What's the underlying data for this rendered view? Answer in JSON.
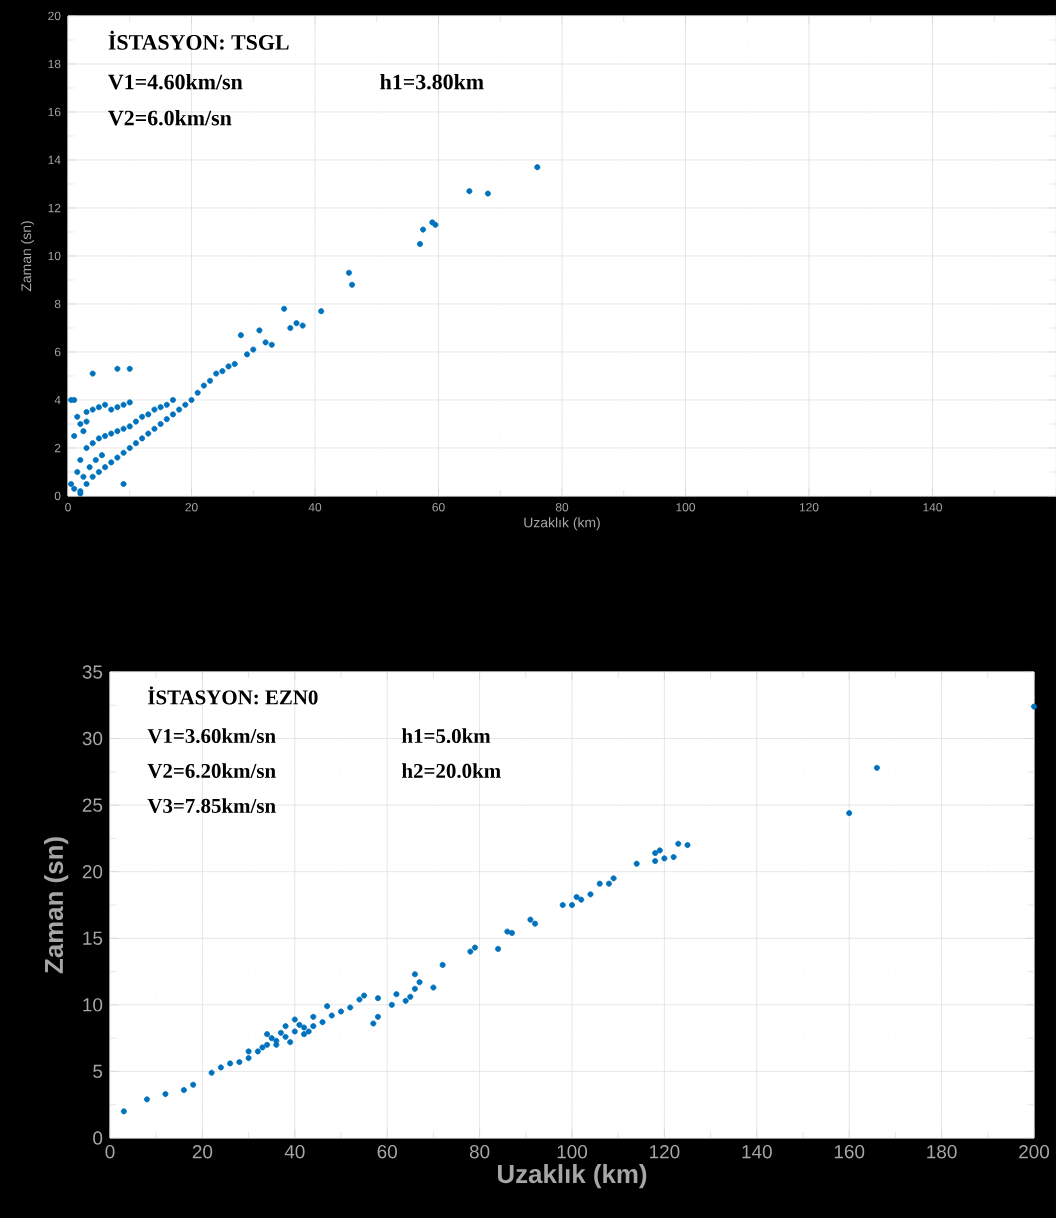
{
  "chart_data": [
    {
      "type": "scatter",
      "xlabel": "Uzaklık (km)",
      "ylabel": "Zaman (sn)",
      "annotations": [
        "İSTASYON: TSGL",
        "V1=4.60km/sn",
        "h1=3.80km",
        "V2=6.0km/sn"
      ],
      "xlim": [
        0,
        160
      ],
      "ylim": [
        0,
        20
      ],
      "xticks": [
        0,
        20,
        40,
        60,
        80,
        100,
        120,
        140,
        {
          "value": 160,
          "label": null
        }
      ],
      "yticks": [
        0,
        2,
        4,
        6,
        8,
        10,
        12,
        14,
        16,
        18,
        20
      ],
      "grid": true,
      "marker": "circle",
      "series": [
        {
          "color": "#0072bd",
          "x": [
            0.5,
            1,
            1,
            1.5,
            2,
            2,
            2,
            2.5,
            3,
            3,
            3,
            3.5,
            4,
            4,
            4,
            4.5,
            5,
            5,
            5,
            5.5,
            6,
            6,
            6,
            7,
            7,
            7,
            8,
            8,
            8,
            9,
            9,
            9,
            10,
            10,
            10,
            11,
            11,
            12,
            12,
            13,
            13,
            14,
            14,
            15,
            15,
            16,
            16,
            17,
            17,
            18,
            19,
            20,
            21,
            22,
            23,
            24,
            25,
            26,
            27,
            28,
            29,
            30,
            31,
            32,
            33,
            35,
            36,
            37,
            38,
            41,
            45.5,
            46,
            57,
            57.5,
            59,
            59.5,
            65,
            68,
            76,
            4,
            8,
            10,
            9,
            2,
            0.5,
            1,
            3,
            1.5,
            2.5
          ],
          "values": [
            0.5,
            0.3,
            2.5,
            1.0,
            0.2,
            1.5,
            3.0,
            0.8,
            0.5,
            2.0,
            3.5,
            1.2,
            0.8,
            2.2,
            3.6,
            1.5,
            1.0,
            2.4,
            3.7,
            1.7,
            1.2,
            2.5,
            3.8,
            1.4,
            2.6,
            3.6,
            1.6,
            2.7,
            3.7,
            1.8,
            2.8,
            3.8,
            2.0,
            2.9,
            3.9,
            2.2,
            3.1,
            2.4,
            3.3,
            2.6,
            3.4,
            2.8,
            3.6,
            3.0,
            3.7,
            3.2,
            3.8,
            3.4,
            4.0,
            3.6,
            3.8,
            4.0,
            4.3,
            4.6,
            4.8,
            5.1,
            5.2,
            5.4,
            5.5,
            6.7,
            5.9,
            6.1,
            6.9,
            6.4,
            6.3,
            7.8,
            7.0,
            7.2,
            7.1,
            7.7,
            9.3,
            8.8,
            10.5,
            11.1,
            11.4,
            11.3,
            12.7,
            12.6,
            13.7,
            5.1,
            5.3,
            5.3,
            0.5,
            0.1,
            4.0,
            4.0,
            3.1,
            3.3,
            2.7
          ]
        }
      ]
    },
    {
      "type": "scatter",
      "xlabel": "Uzaklık (km)",
      "ylabel": "Zaman (sn)",
      "annotations": [
        "İSTASYON: EZN0",
        "V1=3.60km/sn",
        "h1=5.0km",
        "V2=6.20km/sn",
        "h2=20.0km",
        "V3=7.85km/sn"
      ],
      "xlim": [
        0,
        200
      ],
      "ylim": [
        0,
        35
      ],
      "xticks": [
        0,
        20,
        40,
        60,
        80,
        100,
        120,
        140,
        160,
        180,
        200
      ],
      "yticks": [
        0,
        5,
        10,
        15,
        20,
        25,
        30,
        35
      ],
      "grid": true,
      "marker": "circle",
      "series": [
        {
          "color": "#0072bd",
          "x": [
            3,
            8,
            12,
            16,
            18,
            22,
            24,
            26,
            28,
            30,
            32,
            34,
            36,
            38,
            40,
            42,
            44,
            46,
            48,
            50,
            52,
            54,
            55,
            47,
            34,
            38,
            40,
            44,
            30,
            36,
            42,
            33,
            37,
            39,
            41,
            35,
            43,
            57,
            58,
            58,
            61,
            62,
            64,
            65,
            66,
            66,
            67,
            70,
            72,
            78,
            79,
            84,
            86,
            87,
            91,
            92,
            98,
            100,
            101,
            102,
            104,
            106,
            108,
            109,
            114,
            118,
            119,
            118,
            120,
            122,
            123,
            125,
            160,
            166,
            200
          ],
          "values": [
            2.0,
            2.9,
            3.3,
            3.6,
            4.0,
            4.9,
            5.3,
            5.6,
            5.7,
            6.0,
            6.5,
            7.0,
            7.3,
            7.6,
            8.0,
            8.3,
            8.4,
            8.7,
            9.2,
            9.5,
            9.8,
            10.4,
            10.7,
            9.9,
            7.8,
            8.4,
            8.9,
            9.1,
            6.5,
            7.0,
            7.8,
            6.8,
            7.9,
            7.2,
            8.5,
            7.5,
            8.0,
            8.6,
            9.1,
            10.5,
            10.0,
            10.8,
            10.3,
            10.6,
            11.2,
            12.3,
            11.7,
            11.3,
            13.0,
            14.0,
            14.3,
            14.2,
            15.5,
            15.4,
            16.4,
            16.1,
            17.5,
            17.5,
            18.1,
            17.9,
            18.3,
            19.1,
            19.1,
            19.5,
            20.6,
            21.4,
            21.6,
            20.8,
            21.0,
            21.1,
            22.1,
            22.0,
            24.4,
            27.8,
            32.4
          ]
        }
      ]
    }
  ]
}
